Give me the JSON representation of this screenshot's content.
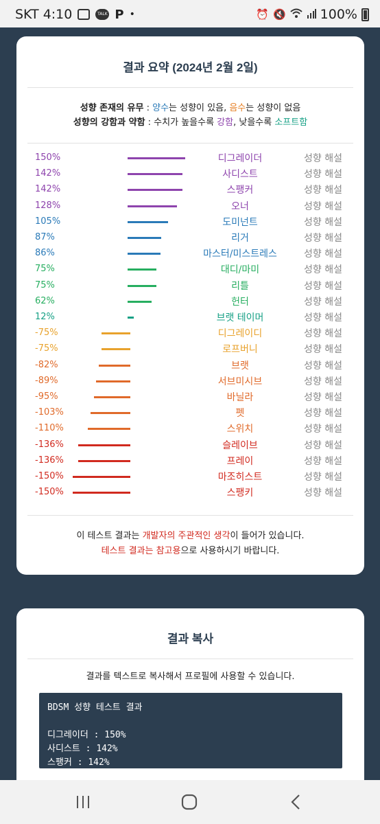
{
  "status_bar": {
    "carrier_time": "SKT 4:10",
    "talk_label": "TALK",
    "p_label": "P",
    "dot": "•",
    "battery": "100%",
    "icons": [
      "image-icon",
      "talk-icon",
      "p-icon",
      "alarm-icon",
      "mute-icon",
      "wifi-icon",
      "signal-icon",
      "battery-icon"
    ]
  },
  "summary": {
    "title": "결과 요약 (2024년 2월 2일)",
    "legend": {
      "line1_label": "성향 존재의 유무",
      "line1_colon": " : ",
      "positive": "양수",
      "line1_mid": "는 성향이 있음, ",
      "negative": "음수",
      "line1_end": "는 성향이 없음",
      "line2_label": "성향의 강함과 약함",
      "line2_colon": " : 수치가 높을수록 ",
      "strong": "강함",
      "line2_mid": ", 낮을수록 ",
      "soft": "소프트함"
    },
    "interpret_label": "성향 해설",
    "colors": {
      "purple": "#8e44ad",
      "blue": "#2a7ab8",
      "green": "#27ae60",
      "orange_light": "#e8a22c",
      "orange": "#e06a2a",
      "red": "#d12a1f"
    },
    "rows": [
      {
        "pct": "150%",
        "value": 150,
        "name": "디그레이더",
        "color": "#8e44ad"
      },
      {
        "pct": "142%",
        "value": 142,
        "name": "사디스트",
        "color": "#8e44ad"
      },
      {
        "pct": "142%",
        "value": 142,
        "name": "스팽커",
        "color": "#8e44ad"
      },
      {
        "pct": "128%",
        "value": 128,
        "name": "오너",
        "color": "#8e44ad"
      },
      {
        "pct": "105%",
        "value": 105,
        "name": "도미넌트",
        "color": "#2a7ab8"
      },
      {
        "pct": "87%",
        "value": 87,
        "name": "리거",
        "color": "#2a7ab8"
      },
      {
        "pct": "86%",
        "value": 86,
        "name": "마스터/미스트레스",
        "color": "#2a7ab8"
      },
      {
        "pct": "75%",
        "value": 75,
        "name": "대디/마미",
        "color": "#27ae60"
      },
      {
        "pct": "75%",
        "value": 75,
        "name": "리틀",
        "color": "#27ae60"
      },
      {
        "pct": "62%",
        "value": 62,
        "name": "헌터",
        "color": "#27ae60"
      },
      {
        "pct": "12%",
        "value": 12,
        "name": "브랫 테이머",
        "color": "#16a085"
      },
      {
        "pct": "-75%",
        "value": -75,
        "name": "디그레이디",
        "color": "#e8a22c"
      },
      {
        "pct": "-75%",
        "value": -75,
        "name": "로프버니",
        "color": "#e8a22c"
      },
      {
        "pct": "-82%",
        "value": -82,
        "name": "브랫",
        "color": "#e06a2a"
      },
      {
        "pct": "-89%",
        "value": -89,
        "name": "서브미시브",
        "color": "#e06a2a"
      },
      {
        "pct": "-95%",
        "value": -95,
        "name": "바닐라",
        "color": "#e06a2a"
      },
      {
        "pct": "-103%",
        "value": -103,
        "name": "펫",
        "color": "#e06a2a"
      },
      {
        "pct": "-110%",
        "value": -110,
        "name": "스위치",
        "color": "#e06a2a"
      },
      {
        "pct": "-136%",
        "value": -136,
        "name": "슬레이브",
        "color": "#d12a1f"
      },
      {
        "pct": "-136%",
        "value": -136,
        "name": "프레이",
        "color": "#d12a1f"
      },
      {
        "pct": "-150%",
        "value": -150,
        "name": "마조히스트",
        "color": "#d12a1f"
      },
      {
        "pct": "-150%",
        "value": -150,
        "name": "스팽키",
        "color": "#d12a1f"
      }
    ],
    "disclaimer": {
      "l1_a": "이 테스트 결과는 ",
      "l1_red": "개발자의 주관적인 생각",
      "l1_b": "이 들어가 있습니다.",
      "l2_red": "테스트 결과는 참고용",
      "l2_b": "으로 사용하시기 바랍니다."
    }
  },
  "copy": {
    "title": "결과 복사",
    "description": "결과를 텍스트로 복사해서 프로필에 사용할 수 있습니다.",
    "text": "BDSM 성향 테스트 결과\n\n디그레이더 : 150%\n사디스트 : 142%\n스팽커 : 142%"
  },
  "nav": {
    "recents": "|||",
    "home": "○",
    "back": "<"
  }
}
